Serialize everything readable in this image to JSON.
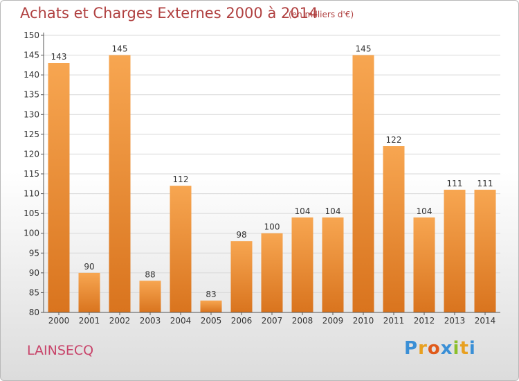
{
  "chart_data": {
    "type": "bar",
    "title": "Achats et Charges Externes 2000 à 2014",
    "subtitle": "(en milliers d'€)",
    "categories": [
      "2000",
      "2001",
      "2002",
      "2003",
      "2004",
      "2005",
      "2006",
      "2007",
      "2008",
      "2009",
      "2010",
      "2011",
      "2012",
      "2013",
      "2014"
    ],
    "values": [
      143,
      90,
      145,
      88,
      112,
      83,
      98,
      100,
      104,
      104,
      145,
      122,
      104,
      111,
      111
    ],
    "ylim": [
      80,
      150
    ],
    "yticks": [
      80,
      85,
      90,
      95,
      100,
      105,
      110,
      115,
      120,
      125,
      130,
      135,
      140,
      145,
      150
    ],
    "grid": true,
    "colors": {
      "bar_light": "#f7a651",
      "bar_dark": "#d9741e",
      "grid": "#d8d8d8",
      "title": "#b04040"
    }
  },
  "footer": {
    "commune": "LAINSECQ",
    "logo_letters": [
      {
        "ch": "P",
        "color": "#3a8fd6"
      },
      {
        "ch": "r",
        "color": "#e8a020"
      },
      {
        "ch": "o",
        "color": "#e05a1a"
      },
      {
        "ch": "x",
        "color": "#3a8fd6"
      },
      {
        "ch": "i",
        "color": "#8bbf2a"
      },
      {
        "ch": "t",
        "color": "#e8a020"
      },
      {
        "ch": "i",
        "color": "#3a8fd6"
      }
    ]
  }
}
